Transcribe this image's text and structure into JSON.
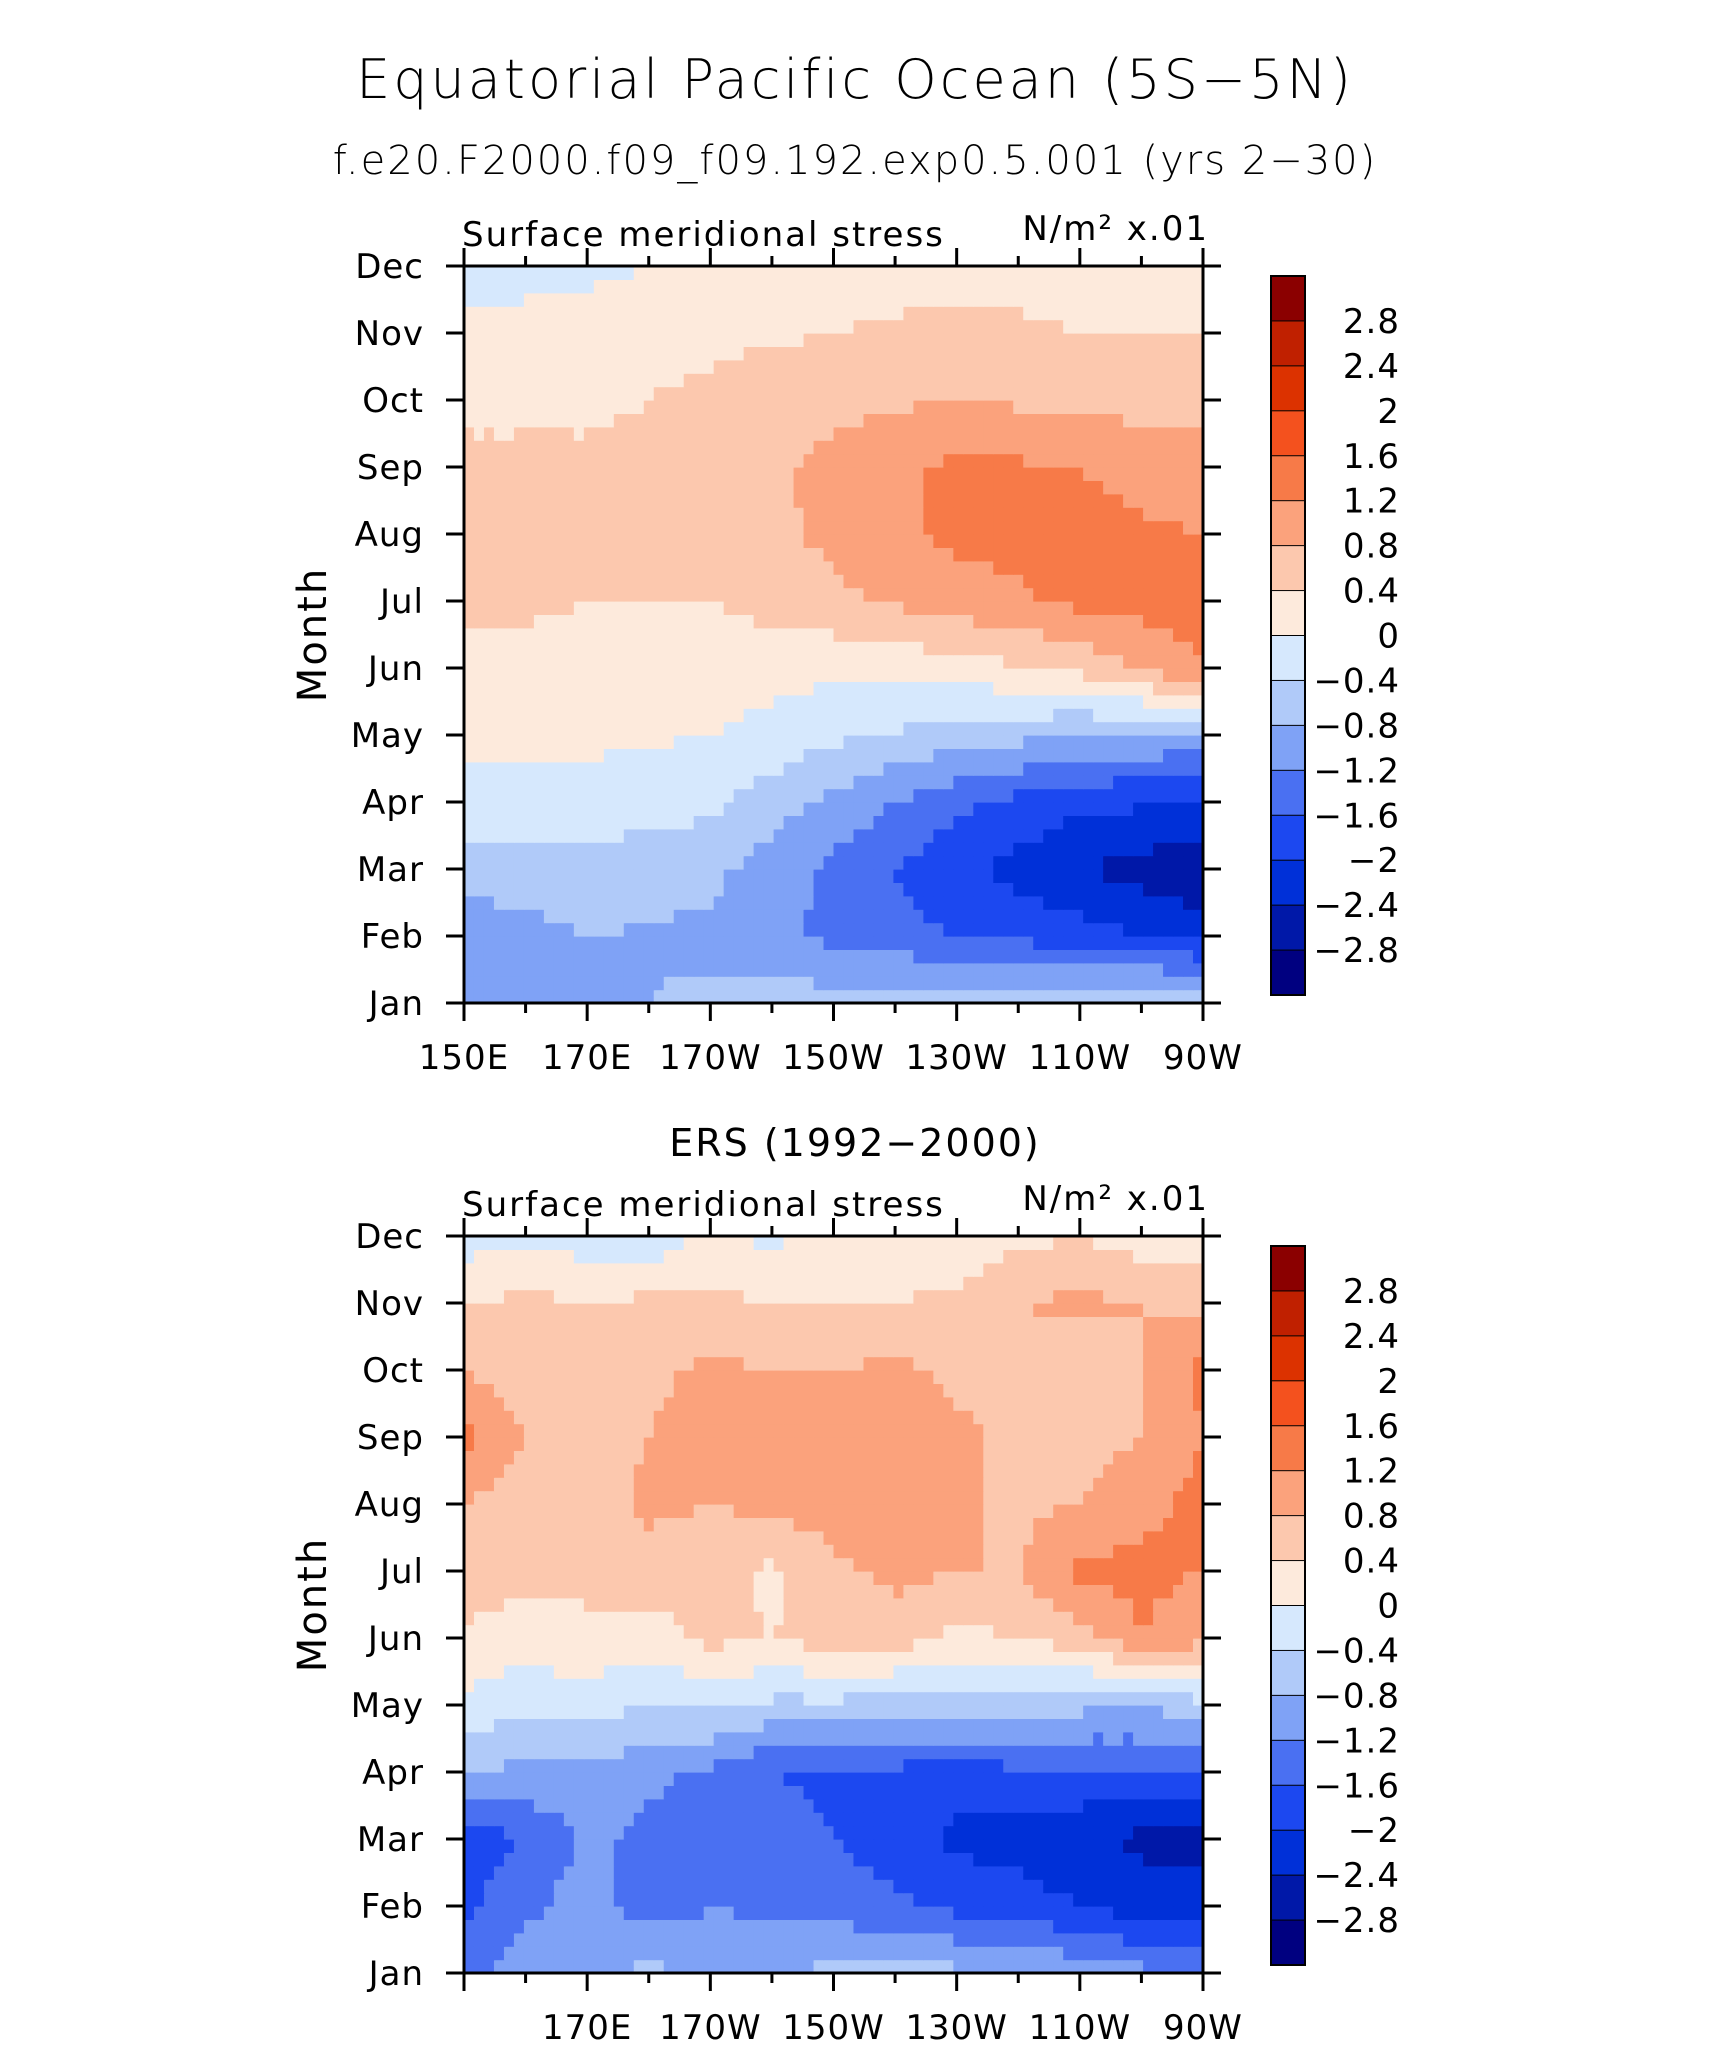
{
  "title": "Equatorial Pacific Ocean (5S−5N)",
  "subtitle": "f.e20.F2000.f09_f09.192.exp0.5.001 (yrs 2−30)",
  "chart_data": [
    {
      "type": "heatmap",
      "panel_title": "",
      "left_label": "Surface meridional stress",
      "units_label": "N/m² x.01",
      "ylabel": "Month",
      "xlabel": "",
      "x_tick_labels": [
        "150E",
        "170E",
        "170W",
        "150W",
        "130W",
        "110W",
        "90W"
      ],
      "x_tick_values": [
        150,
        170,
        190,
        210,
        230,
        250,
        270
      ],
      "xlim": [
        150,
        270
      ],
      "y_tick_labels": [
        "Jan",
        "Feb",
        "Mar",
        "Apr",
        "May",
        "Jun",
        "Jul",
        "Aug",
        "Sep",
        "Oct",
        "Nov",
        "Dec"
      ],
      "ylim": [
        1,
        12
      ],
      "x": [
        150,
        170,
        190,
        210,
        230,
        250,
        270
      ],
      "y": [
        "Jan",
        "Feb",
        "Mar",
        "Apr",
        "May",
        "Jun",
        "Jul",
        "Aug",
        "Sep",
        "Oct",
        "Nov",
        "Dec"
      ],
      "z": [
        [
          -1.0,
          -0.9,
          -0.7,
          -0.6,
          -0.5,
          -0.4,
          -0.3
        ],
        [
          -1.1,
          -0.8,
          -0.9,
          -1.3,
          -1.6,
          -1.8,
          -2.2
        ],
        [
          -0.6,
          -0.5,
          -0.7,
          -1.3,
          -1.9,
          -2.4,
          -2.7
        ],
        [
          -0.1,
          -0.2,
          -0.3,
          -0.9,
          -1.5,
          -1.9,
          -2.0
        ],
        [
          0.1,
          0.1,
          0.0,
          -0.3,
          -0.6,
          -0.8,
          -0.9
        ],
        [
          0.3,
          0.3,
          0.2,
          0.1,
          0.2,
          0.5,
          1.2
        ],
        [
          0.5,
          0.4,
          0.4,
          0.7,
          1.0,
          1.3,
          1.4
        ],
        [
          0.5,
          0.5,
          0.5,
          0.9,
          1.3,
          1.3,
          1.2
        ],
        [
          0.5,
          0.5,
          0.6,
          0.9,
          1.3,
          1.2,
          1.0
        ],
        [
          0.3,
          0.3,
          0.5,
          0.7,
          0.8,
          0.7,
          0.6
        ],
        [
          0.1,
          0.2,
          0.3,
          0.4,
          0.5,
          0.4,
          0.4
        ],
        [
          -0.2,
          -0.1,
          0.1,
          0.2,
          0.3,
          0.3,
          0.3
        ]
      ]
    },
    {
      "type": "heatmap",
      "panel_title": "ERS (1992−2000)",
      "left_label": "Surface meridional stress",
      "units_label": "N/m² x.01",
      "ylabel": "Month",
      "xlabel": "",
      "x_tick_labels": [
        "",
        "170E",
        "170W",
        "150W",
        "130W",
        "110W",
        "90W"
      ],
      "x_tick_values": [
        150,
        170,
        190,
        210,
        230,
        250,
        270
      ],
      "xlim": [
        150,
        270
      ],
      "y_tick_labels": [
        "Jan",
        "Feb",
        "Mar",
        "Apr",
        "May",
        "Jun",
        "Jul",
        "Aug",
        "Sep",
        "Oct",
        "Nov",
        "Dec"
      ],
      "ylim": [
        1,
        12
      ],
      "x": [
        150,
        160,
        170,
        180,
        190,
        200,
        210,
        220,
        230,
        240,
        250,
        260,
        270
      ],
      "y": [
        "Jan",
        "Feb",
        "Mar",
        "Apr",
        "May",
        "Jun",
        "Jul",
        "Aug",
        "Sep",
        "Oct",
        "Nov",
        "Dec"
      ],
      "z": [
        [
          -1.3,
          -1.0,
          -0.9,
          -0.7,
          -0.9,
          -0.8,
          -0.7,
          -0.6,
          -0.7,
          -0.8,
          -0.9,
          -1.1,
          -1.3
        ],
        [
          -1.7,
          -1.3,
          -1.0,
          -1.4,
          -1.2,
          -1.3,
          -1.4,
          -1.5,
          -1.7,
          -1.8,
          -2.0,
          -2.2,
          -2.3
        ],
        [
          -1.8,
          -1.6,
          -1.1,
          -1.3,
          -1.5,
          -1.4,
          -1.6,
          -1.8,
          -2.1,
          -2.2,
          -2.3,
          -2.5,
          -2.5
        ],
        [
          -0.8,
          -0.9,
          -0.9,
          -1.1,
          -1.3,
          -1.6,
          -1.7,
          -1.7,
          -1.8,
          -1.7,
          -1.7,
          -1.6,
          -1.6
        ],
        [
          -0.1,
          -0.3,
          -0.2,
          -0.4,
          -0.3,
          -0.5,
          -0.5,
          -0.6,
          -0.6,
          -0.5,
          -0.7,
          -0.8,
          -0.5
        ],
        [
          0.3,
          0.2,
          0.3,
          0.2,
          0.5,
          0.4,
          0.6,
          0.6,
          0.3,
          0.4,
          0.6,
          1.2,
          0.9
        ],
        [
          0.7,
          0.5,
          0.5,
          0.6,
          0.6,
          0.3,
          0.7,
          0.9,
          0.8,
          0.8,
          1.3,
          1.3,
          1.2
        ],
        [
          0.8,
          0.6,
          0.5,
          0.9,
          0.8,
          0.9,
          1.0,
          1.0,
          0.9,
          0.7,
          0.8,
          1.1,
          1.3
        ],
        [
          1.3,
          0.8,
          0.6,
          0.8,
          1.0,
          1.0,
          0.9,
          1.0,
          0.9,
          0.7,
          0.6,
          0.8,
          1.2
        ],
        [
          0.8,
          0.6,
          0.5,
          0.7,
          0.9,
          0.8,
          0.8,
          0.9,
          0.7,
          0.6,
          0.5,
          0.8,
          1.3
        ],
        [
          0.4,
          0.5,
          0.4,
          0.5,
          0.5,
          0.4,
          0.4,
          0.4,
          0.5,
          0.8,
          0.9,
          0.8,
          0.7
        ],
        [
          -0.2,
          -0.1,
          -0.2,
          -0.3,
          0.1,
          -0.1,
          0.2,
          0.2,
          0.1,
          0.3,
          0.4,
          0.2,
          0.1
        ]
      ]
    }
  ],
  "colorbar": {
    "levels": [
      -2.8,
      -2.4,
      -2,
      -1.6,
      -1.2,
      -0.8,
      -0.4,
      0,
      0.4,
      0.8,
      1.2,
      1.6,
      2,
      2.4,
      2.8
    ],
    "tick_labels": [
      "2.8",
      "2.4",
      "2",
      "1.6",
      "1.2",
      "0.8",
      "0.4",
      "0",
      "−0.4",
      "−0.8",
      "−1.2",
      "−1.6",
      "−2",
      "−2.4",
      "−2.8"
    ],
    "colors": [
      "#000080",
      "#0018a8",
      "#0030d8",
      "#1c48f0",
      "#4a70f2",
      "#7fa2f6",
      "#b0caf9",
      "#d6e8fd",
      "#fdeadc",
      "#fcc8ae",
      "#fba27c",
      "#f77a48",
      "#f4511e",
      "#dc3200",
      "#c02000",
      "#8b0000"
    ]
  }
}
